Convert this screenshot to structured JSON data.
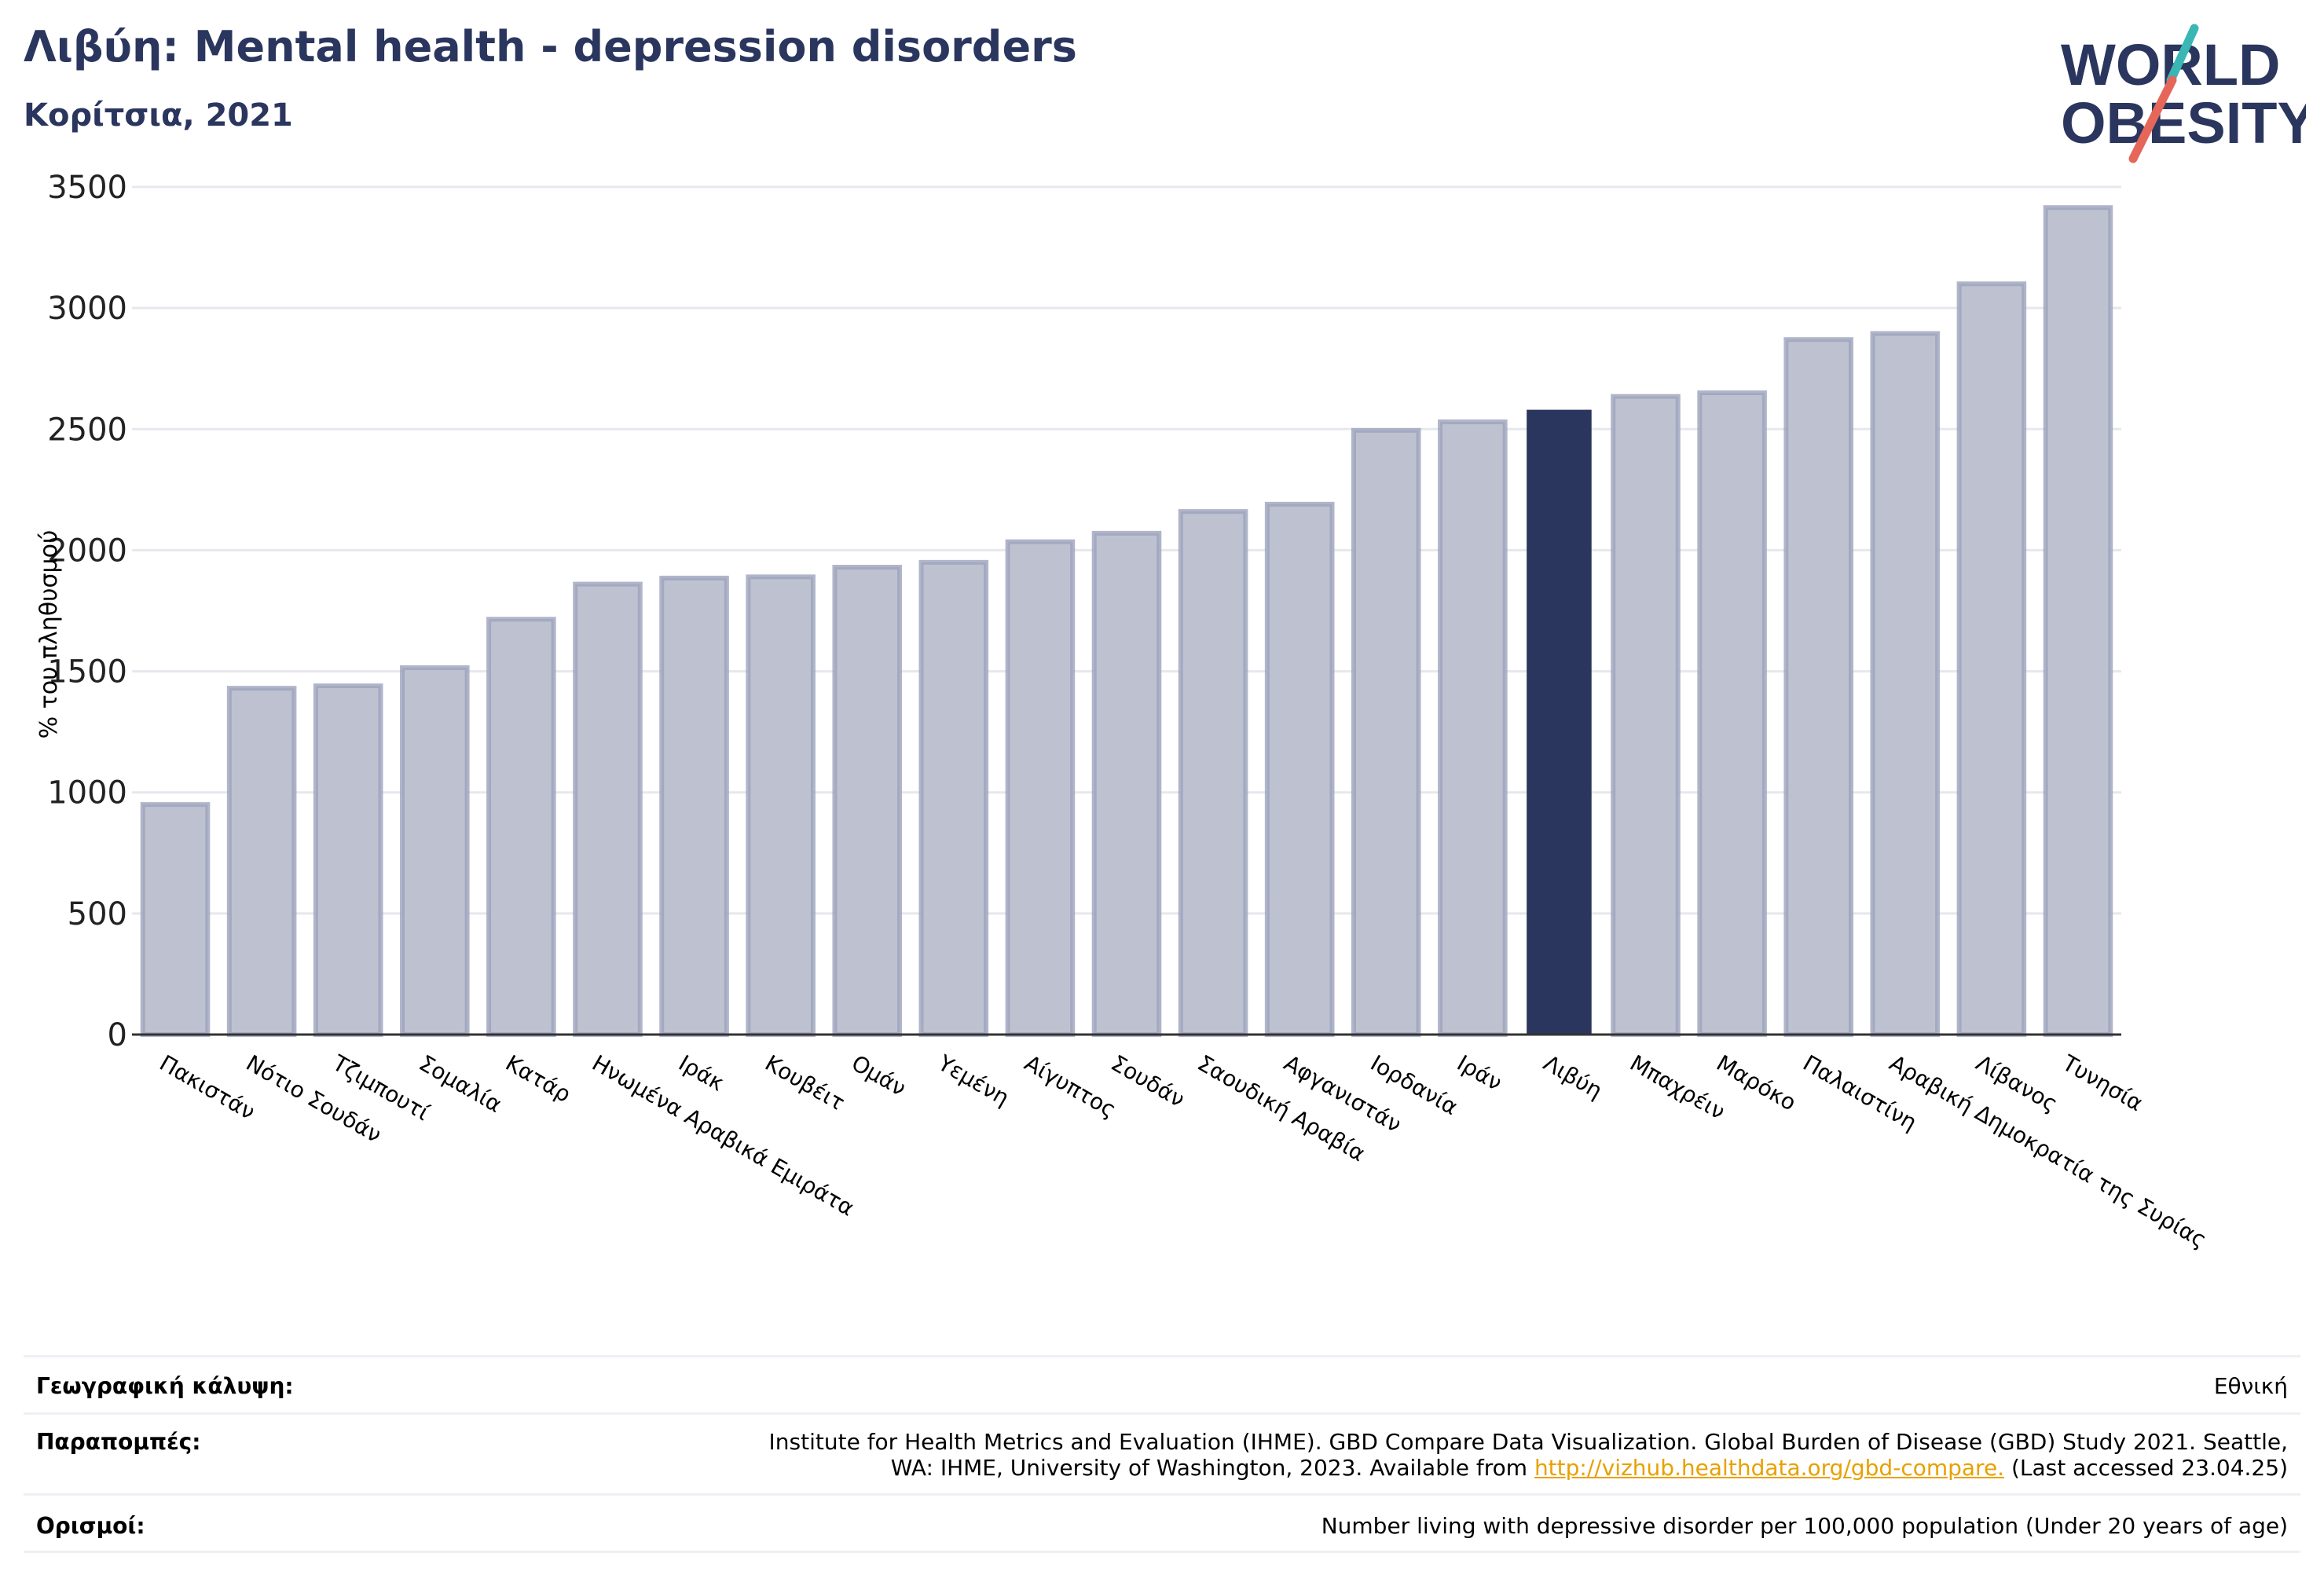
{
  "header": {
    "title": "Λιβύη: Mental health - depression disorders",
    "subtitle": "Κορίτσια, 2021"
  },
  "logo": {
    "line1": "WORLD",
    "line2": "OBESITY",
    "colors": {
      "text": "#2b365f",
      "slash_teal": "#3ab7b5",
      "slash_coral": "#e5675a"
    }
  },
  "chart_data": {
    "type": "bar",
    "ylabel": "% του πληθυσμού",
    "ylim": [
      0,
      3500
    ],
    "yticks": [
      0,
      500,
      1000,
      1500,
      2000,
      2500,
      3000,
      3500
    ],
    "grid": true,
    "highlight": "Λιβύη",
    "colors": {
      "bar": "#bec2d0",
      "bar_edge": "#9ca3bb",
      "highlight": "#2b365f",
      "grid": "#e6e8ee",
      "axis": "#333333"
    },
    "categories": [
      "Πακιστάν",
      "Νότιο Σουδάν",
      "Τζιμπουτί",
      "Σομαλία",
      "Κατάρ",
      "Ηνωμένα Αραβικά Εμιράτα",
      "Ιράκ",
      "Κουβέιτ",
      "Ομάν",
      "Υεμένη",
      "Αίγυπτος",
      "Σουδάν",
      "Σαουδική Αραβία",
      "Αφγανιστάν",
      "Ιορδανία",
      "Ιράν",
      "Λιβύη",
      "Μπαχρέιν",
      "Μαρόκο",
      "Παλαιστίνη",
      "Αραβική Δημοκρατία της Συρίας",
      "Λίβανος",
      "Τυνησία"
    ],
    "values": [
      950,
      1430,
      1440,
      1515,
      1715,
      1860,
      1885,
      1890,
      1930,
      1950,
      2035,
      2070,
      2160,
      2190,
      2495,
      2530,
      2580,
      2635,
      2650,
      2870,
      2895,
      3100,
      3415
    ]
  },
  "info": {
    "coverage_label": "Γεωγραφική κάλυψη:",
    "coverage_value": "Εθνική",
    "references_label": "Παραπομπές:",
    "references_line1": "Institute for Health Metrics and Evaluation (IHME). GBD Compare Data Visualization. Global Burden of Disease (GBD) Study 2021. Seattle,",
    "references_line2_pre": "WA: IHME, University of Washington, 2023. Available from ",
    "references_link": "http://vizhub.healthdata.org/gbd-compare.",
    "references_line2_post": " (Last accessed 23.04.25)",
    "definitions_label": "Ορισμοί:",
    "definitions_value": "Number living with depressive disorder per 100,000 population (Under 20 years of age)"
  }
}
